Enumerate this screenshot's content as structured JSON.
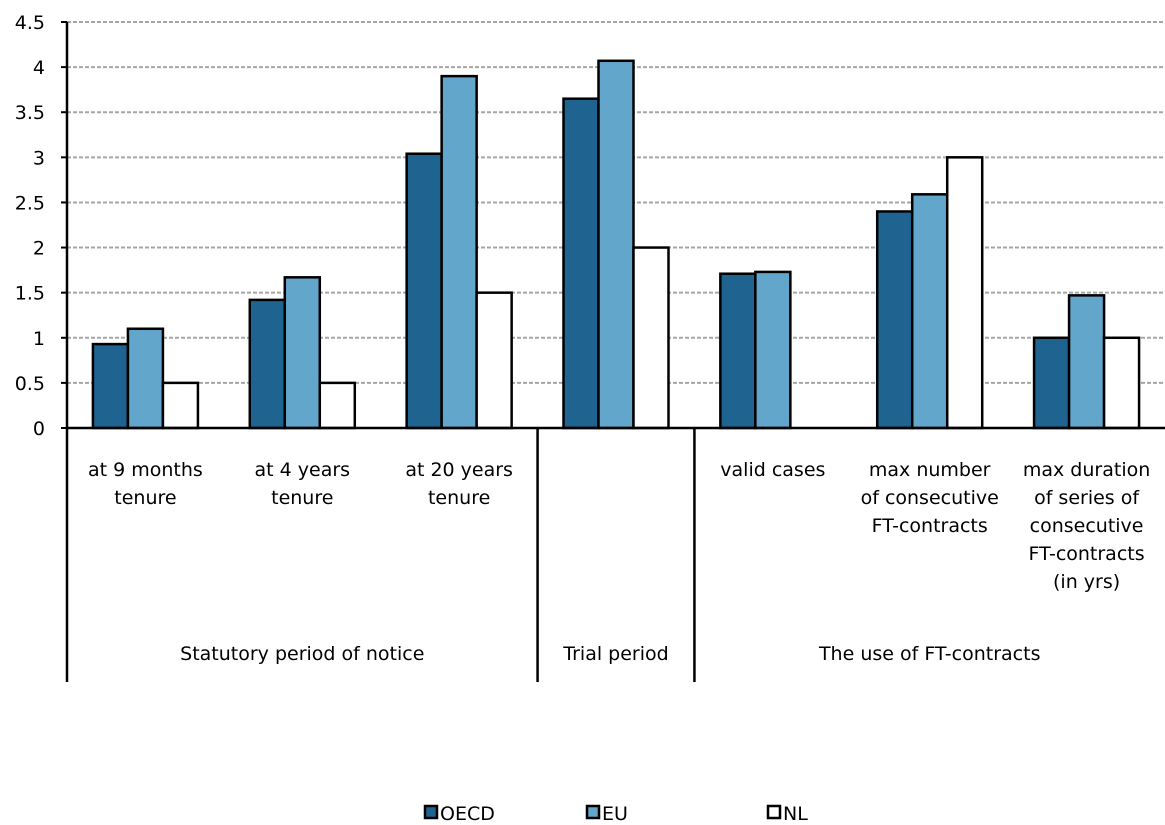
{
  "chart_data": {
    "type": "bar",
    "categories": [
      [
        "at 9 months",
        "tenure"
      ],
      [
        "at 4 years",
        "tenure"
      ],
      [
        "at 20 years",
        "tenure"
      ],
      [],
      [
        "valid cases"
      ],
      [
        "max number",
        "of consecutive",
        "FT-contracts"
      ],
      [
        "max duration",
        "of series of",
        "consecutive",
        "FT-contracts",
        "(in yrs)"
      ]
    ],
    "groups": [
      {
        "label": "Statutory period of notice",
        "start": 0,
        "end": 2
      },
      {
        "label": "Trial period",
        "start": 3,
        "end": 3
      },
      {
        "label": "The use of FT-contracts",
        "start": 4,
        "end": 6
      }
    ],
    "series": [
      {
        "name": "OECD",
        "color": "#1f6391",
        "values": [
          0.93,
          1.42,
          3.04,
          3.65,
          1.71,
          2.4,
          1.0
        ]
      },
      {
        "name": "EU",
        "color": "#62a6cb",
        "values": [
          1.1,
          1.67,
          3.9,
          4.07,
          1.73,
          2.59,
          1.47
        ]
      },
      {
        "name": "NL",
        "color": "#ffffff",
        "values": [
          0.5,
          0.5,
          1.5,
          2.0,
          null,
          3.0,
          1.0
        ]
      }
    ],
    "ylim": [
      0,
      4.5
    ],
    "yticks": [
      "0",
      "0.5",
      "1",
      "1.5",
      "2",
      "2.5",
      "3",
      "3.5",
      "4",
      "4.5"
    ],
    "grid": true,
    "legend_position": "bottom"
  }
}
